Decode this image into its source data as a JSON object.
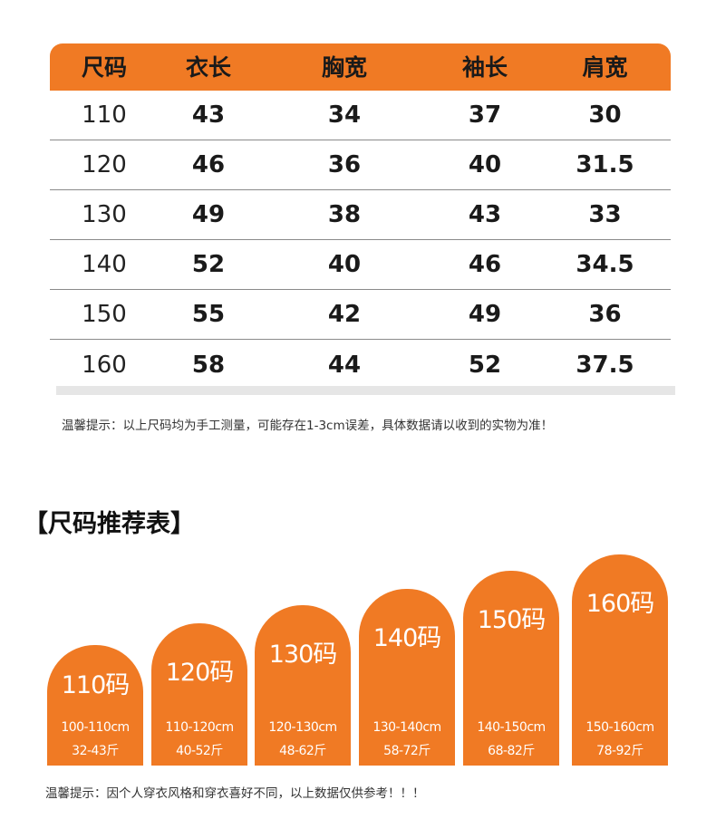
{
  "size_table": {
    "headers": [
      "尺码",
      "衣长",
      "胸宽",
      "袖长",
      "肩宽"
    ],
    "rows": [
      [
        "110",
        "43",
        "34",
        "37",
        "30"
      ],
      [
        "120",
        "46",
        "36",
        "40",
        "31.5"
      ],
      [
        "130",
        "49",
        "38",
        "43",
        "33"
      ],
      [
        "140",
        "52",
        "40",
        "46",
        "34.5"
      ],
      [
        "150",
        "55",
        "42",
        "49",
        "36"
      ],
      [
        "160",
        "58",
        "44",
        "52",
        "37.5"
      ]
    ]
  },
  "note_measurement": "温馨提示：以上尺码均为手工测量，可能存在1-3cm误差，具体数据请以收到的实物为准！",
  "recommend": {
    "title": "【尺码推荐表】",
    "items": [
      {
        "size": "110码",
        "height": "100-110cm",
        "weight": "32-43斤"
      },
      {
        "size": "120码",
        "height": "110-120cm",
        "weight": "40-52斤"
      },
      {
        "size": "130码",
        "height": "120-130cm",
        "weight": "48-62斤"
      },
      {
        "size": "140码",
        "height": "130-140cm",
        "weight": "58-72斤"
      },
      {
        "size": "150码",
        "height": "140-150cm",
        "weight": "68-82斤"
      },
      {
        "size": "160码",
        "height": "150-160cm",
        "weight": "78-92斤"
      }
    ]
  },
  "note_recommend": "温馨提示：因个人穿衣风格和穿衣喜好不同，以上数据仅供参考！！！",
  "colors": {
    "accent": "#f07a24",
    "divider": "#8a8a8a"
  }
}
